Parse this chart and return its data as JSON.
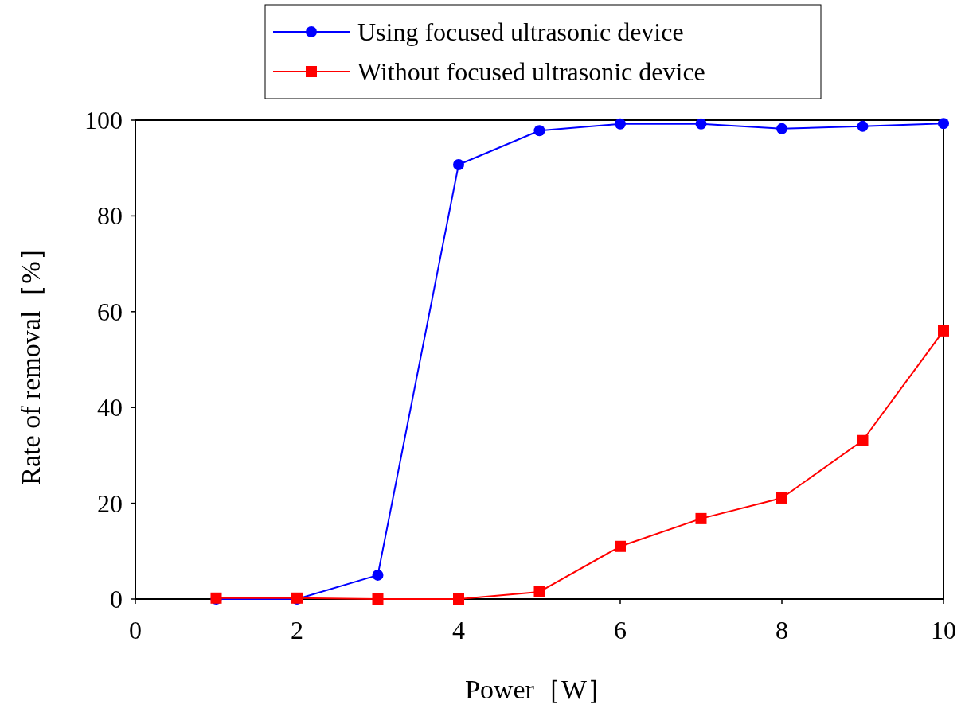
{
  "chart_data": {
    "type": "line",
    "xlabel": "Power［W］",
    "ylabel": "Rate of removal［%］",
    "x": [
      1,
      2,
      3,
      4,
      5,
      6,
      7,
      8,
      9,
      10
    ],
    "series": [
      {
        "name": "Using focused ultrasonic device",
        "color": "#0000ff",
        "marker": "circle",
        "values": [
          0,
          0,
          5.0,
          90.7,
          97.8,
          99.2,
          99.2,
          98.2,
          98.7,
          99.3
        ]
      },
      {
        "name": "Without focused ultrasonic device",
        "color": "#ff0000",
        "marker": "square",
        "values": [
          0.2,
          0.2,
          0,
          0,
          1.5,
          11.0,
          16.8,
          21.1,
          33.1,
          56.0
        ]
      }
    ],
    "xlim": [
      0,
      10
    ],
    "xticks": [
      0,
      2,
      4,
      6,
      8,
      10
    ],
    "ylim": [
      0,
      100
    ],
    "yticks": [
      0,
      20,
      40,
      60,
      80,
      100
    ],
    "grid": false,
    "legend": "top"
  }
}
